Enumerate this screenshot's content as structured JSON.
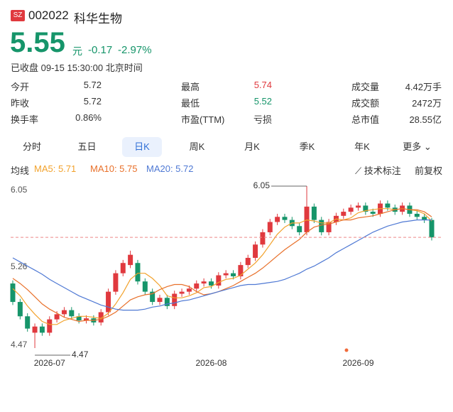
{
  "header": {
    "market": "SZ",
    "code": "002022",
    "name": "科华生物"
  },
  "quote": {
    "price": "5.55",
    "unit": "元",
    "change": "-0.17",
    "change_pct": "-2.97%",
    "status": "已收盘 09-15 15:30:00 北京时间"
  },
  "stats": [
    [
      {
        "label": "今开",
        "value": "5.72"
      },
      {
        "label": "最高",
        "value": "5.74"
      },
      {
        "label": "成交量",
        "value": "4.42万手"
      }
    ],
    [
      {
        "label": "昨收",
        "value": "5.72"
      },
      {
        "label": "最低",
        "value": "5.52"
      },
      {
        "label": "成交额",
        "value": "2472万"
      }
    ],
    [
      {
        "label": "换手率",
        "value": "0.86%"
      },
      {
        "label": "市盈(TTM)",
        "value": "亏损"
      },
      {
        "label": "总市值",
        "value": "28.55亿"
      }
    ]
  ],
  "tabs": [
    "分时",
    "五日",
    "日K",
    "周K",
    "月K",
    "季K",
    "年K",
    "更多"
  ],
  "ma_row": {
    "label": "均线",
    "tools": "技术标注",
    "adjust": "前复权"
  },
  "chart_data": {
    "type": "candlestick",
    "up_color": "#e0393e",
    "down_color": "#16956a",
    "categories": [
      null,
      null,
      null,
      null,
      null,
      "2026-07",
      null,
      null,
      null,
      null,
      null,
      null,
      null,
      null,
      null,
      null,
      null,
      null,
      null,
      null,
      null,
      null,
      null,
      null,
      null,
      null,
      null,
      "2026-08",
      null,
      null,
      null,
      null,
      null,
      null,
      null,
      null,
      null,
      null,
      null,
      null,
      null,
      null,
      null,
      null,
      null,
      null,
      null,
      "2026-09",
      null,
      null,
      null,
      null,
      null,
      null,
      null,
      null,
      null,
      null
    ],
    "open": [
      5.1,
      4.92,
      4.78,
      4.62,
      4.68,
      4.62,
      4.75,
      4.8,
      4.84,
      4.78,
      4.74,
      4.76,
      4.72,
      4.82,
      5.02,
      5.2,
      5.28,
      5.3,
      5.12,
      5.02,
      4.92,
      4.96,
      4.88,
      5.0,
      5.02,
      5.05,
      5.1,
      5.12,
      5.08,
      5.18,
      5.2,
      5.17,
      5.28,
      5.35,
      5.48,
      5.6,
      5.7,
      5.75,
      5.72,
      5.66,
      5.6,
      5.85,
      5.72,
      5.6,
      5.7,
      5.76,
      5.8,
      5.84,
      5.86,
      5.8,
      5.78,
      5.88,
      5.84,
      5.8,
      5.86,
      5.78,
      5.75,
      5.72
    ],
    "high": [
      5.13,
      4.95,
      4.81,
      4.71,
      4.71,
      4.78,
      4.83,
      4.87,
      4.87,
      4.81,
      4.79,
      4.79,
      4.85,
      5.05,
      5.23,
      5.33,
      5.42,
      5.33,
      5.15,
      5.05,
      4.99,
      4.99,
      5.03,
      5.05,
      5.08,
      5.13,
      5.15,
      5.15,
      5.21,
      5.23,
      5.23,
      5.31,
      5.38,
      5.51,
      5.63,
      5.73,
      5.78,
      5.78,
      5.75,
      5.69,
      6.05,
      5.88,
      5.75,
      5.73,
      5.79,
      5.83,
      5.87,
      5.89,
      5.89,
      5.83,
      5.91,
      5.91,
      5.87,
      5.89,
      5.89,
      5.81,
      5.78,
      5.74
    ],
    "low": [
      4.89,
      4.75,
      4.63,
      4.47,
      4.59,
      4.59,
      4.72,
      4.77,
      4.75,
      4.71,
      4.71,
      4.69,
      4.69,
      4.79,
      4.99,
      5.17,
      5.25,
      5.09,
      4.99,
      4.89,
      4.89,
      4.85,
      4.85,
      4.97,
      4.99,
      5.02,
      5.07,
      5.05,
      5.05,
      5.15,
      5.14,
      5.14,
      5.25,
      5.32,
      5.45,
      5.57,
      5.67,
      5.69,
      5.63,
      5.57,
      5.57,
      5.69,
      5.57,
      5.57,
      5.67,
      5.73,
      5.77,
      5.81,
      5.77,
      5.75,
      5.75,
      5.81,
      5.77,
      5.77,
      5.75,
      5.72,
      5.69,
      5.52
    ],
    "close": [
      4.92,
      4.78,
      4.66,
      4.68,
      4.62,
      4.75,
      4.8,
      4.84,
      4.78,
      4.74,
      4.76,
      4.72,
      4.82,
      5.02,
      5.2,
      5.3,
      5.38,
      5.12,
      5.02,
      4.92,
      4.96,
      4.88,
      5.0,
      5.02,
      5.05,
      5.1,
      5.12,
      5.08,
      5.18,
      5.2,
      5.17,
      5.28,
      5.35,
      5.48,
      5.6,
      5.7,
      5.75,
      5.72,
      5.66,
      5.6,
      5.85,
      5.72,
      5.6,
      5.7,
      5.76,
      5.8,
      5.84,
      5.86,
      5.8,
      5.78,
      5.88,
      5.84,
      5.8,
      5.86,
      5.78,
      5.75,
      5.72,
      5.55
    ],
    "series": [
      {
        "name": "MA5: 5.71",
        "color": "#f2a22c",
        "values": [
          5.05,
          4.98,
          4.88,
          4.8,
          4.73,
          4.7,
          4.7,
          4.74,
          4.76,
          4.78,
          4.78,
          4.77,
          4.76,
          4.81,
          4.9,
          5.01,
          5.14,
          5.2,
          5.2,
          5.15,
          5.08,
          4.98,
          4.96,
          4.96,
          4.98,
          5.01,
          5.06,
          5.07,
          5.11,
          5.14,
          5.15,
          5.18,
          5.24,
          5.3,
          5.38,
          5.48,
          5.58,
          5.65,
          5.69,
          5.69,
          5.72,
          5.71,
          5.69,
          5.69,
          5.73,
          5.72,
          5.74,
          5.79,
          5.81,
          5.82,
          5.83,
          5.83,
          5.82,
          5.83,
          5.82,
          5.81,
          5.78,
          5.71
        ]
      },
      {
        "name": "MA10: 5.75",
        "color": "#e8702a",
        "values": [
          5.15,
          5.1,
          5.04,
          4.97,
          4.9,
          4.85,
          4.81,
          4.77,
          4.75,
          4.73,
          4.74,
          4.74,
          4.75,
          4.78,
          4.82,
          4.88,
          4.94,
          4.97,
          4.99,
          5.0,
          5.04,
          5.07,
          5.09,
          5.09,
          5.07,
          5.02,
          4.99,
          5.0,
          5.02,
          5.05,
          5.08,
          5.12,
          5.16,
          5.2,
          5.25,
          5.31,
          5.37,
          5.43,
          5.48,
          5.53,
          5.6,
          5.65,
          5.67,
          5.68,
          5.7,
          5.72,
          5.72,
          5.74,
          5.75,
          5.76,
          5.78,
          5.8,
          5.82,
          5.83,
          5.82,
          5.82,
          5.8,
          5.75
        ]
      },
      {
        "name": "MA20: 5.72",
        "color": "#4f79d4",
        "values": [
          5.35,
          5.31,
          5.27,
          5.23,
          5.19,
          5.14,
          5.1,
          5.06,
          5.02,
          4.98,
          4.95,
          4.92,
          4.89,
          4.87,
          4.85,
          4.84,
          4.84,
          4.84,
          4.85,
          4.87,
          4.88,
          4.9,
          4.91,
          4.93,
          4.94,
          4.96,
          4.98,
          5.0,
          5.02,
          5.04,
          5.06,
          5.08,
          5.09,
          5.09,
          5.1,
          5.11,
          5.12,
          5.14,
          5.17,
          5.2,
          5.24,
          5.27,
          5.31,
          5.35,
          5.4,
          5.44,
          5.48,
          5.52,
          5.56,
          5.6,
          5.63,
          5.66,
          5.68,
          5.7,
          5.71,
          5.72,
          5.72,
          5.72
        ]
      }
    ],
    "ylim": [
      4.47,
      6.05
    ],
    "yticks": [
      4.47,
      5.26,
      6.05
    ]
  }
}
